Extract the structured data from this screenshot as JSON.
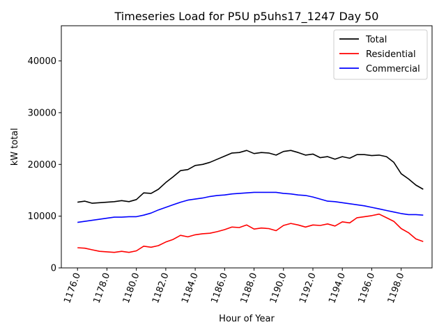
{
  "chart_data": {
    "type": "line",
    "title": "Timeseries Load for P5U p5uhs17_1247  Day 50",
    "xlabel": "Hour of Year",
    "ylabel": "kW total",
    "xlim": [
      1174.9,
      1200.1
    ],
    "ylim": [
      0,
      46800
    ],
    "x_ticks": [
      1176,
      1178,
      1180,
      1182,
      1184,
      1186,
      1188,
      1190,
      1192,
      1194,
      1196,
      1198
    ],
    "x_tick_labels": [
      "1176.0",
      "1178.0",
      "1180.0",
      "1182.0",
      "1184.0",
      "1186.0",
      "1188.0",
      "1190.0",
      "1192.0",
      "1194.0",
      "1196.0",
      "1198.0"
    ],
    "y_ticks": [
      0,
      10000,
      20000,
      30000,
      40000
    ],
    "y_tick_labels": [
      "0",
      "10000",
      "20000",
      "30000",
      "40000"
    ],
    "legend_position": "top-right",
    "x": [
      1176.0,
      1176.5,
      1177.0,
      1177.5,
      1178.0,
      1178.5,
      1179.0,
      1179.5,
      1180.0,
      1180.5,
      1181.0,
      1181.5,
      1182.0,
      1182.5,
      1183.0,
      1183.5,
      1184.0,
      1184.5,
      1185.0,
      1185.5,
      1186.0,
      1186.5,
      1187.0,
      1187.5,
      1188.0,
      1188.5,
      1189.0,
      1189.5,
      1190.0,
      1190.5,
      1191.0,
      1191.5,
      1192.0,
      1192.5,
      1193.0,
      1193.5,
      1194.0,
      1194.5,
      1195.0,
      1195.5,
      1196.0,
      1196.5,
      1197.0,
      1197.5,
      1198.0,
      1198.5,
      1199.0,
      1199.5
    ],
    "series": [
      {
        "name": "Total",
        "color": "#000000",
        "values": [
          12700,
          12900,
          12500,
          12600,
          12700,
          12800,
          13000,
          12800,
          13200,
          14500,
          14400,
          15200,
          16500,
          17600,
          18800,
          19000,
          19800,
          20000,
          20400,
          21000,
          21600,
          22200,
          22300,
          22700,
          22100,
          22300,
          22200,
          21800,
          22500,
          22700,
          22300,
          21800,
          22000,
          21300,
          21500,
          21000,
          21500,
          21200,
          21900,
          21900,
          21700,
          21800,
          21500,
          20400,
          18200,
          17200,
          16000,
          15200
        ]
      },
      {
        "name": "Residential",
        "color": "#ff0000",
        "values": [
          3900,
          3800,
          3500,
          3200,
          3100,
          3000,
          3200,
          3000,
          3300,
          4200,
          4000,
          4300,
          5000,
          5500,
          6300,
          6000,
          6400,
          6600,
          6700,
          7000,
          7400,
          7900,
          7800,
          8300,
          7500,
          7700,
          7600,
          7200,
          8200,
          8600,
          8300,
          7900,
          8300,
          8200,
          8500,
          8100,
          8900,
          8700,
          9700,
          9900,
          10100,
          10400,
          9700,
          9000,
          7600,
          6800,
          5600,
          5100
        ]
      },
      {
        "name": "Commercial",
        "color": "#0000ff",
        "values": [
          8800,
          9000,
          9200,
          9400,
          9600,
          9800,
          9800,
          9900,
          9900,
          10200,
          10600,
          11200,
          11700,
          12200,
          12700,
          13100,
          13300,
          13500,
          13800,
          14000,
          14100,
          14300,
          14400,
          14500,
          14600,
          14600,
          14600,
          14600,
          14400,
          14300,
          14100,
          14000,
          13700,
          13300,
          12900,
          12800,
          12600,
          12400,
          12200,
          12000,
          11700,
          11400,
          11100,
          10800,
          10500,
          10300,
          10300,
          10200
        ]
      }
    ]
  }
}
